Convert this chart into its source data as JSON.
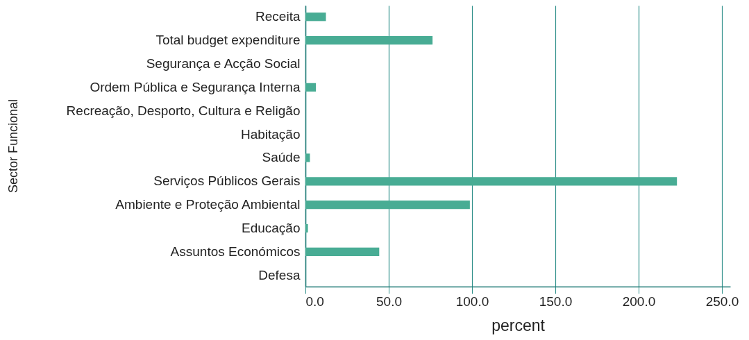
{
  "chart_data": {
    "type": "bar",
    "orientation": "horizontal",
    "xlabel": "percent",
    "ylabel": "Sector Funcional",
    "categories": [
      "Receita",
      "Total budget expenditure",
      "Segurança e Acção Social",
      "Ordem Pública e Segurança Interna",
      "Recreação, Desporto, Cultura e Religão",
      "Habitação",
      "Saúde",
      "Serviços Públicos Gerais",
      "Ambiente e Proteção Ambiental",
      "Educação",
      "Assuntos Económicos",
      "Defesa"
    ],
    "values": [
      12.3,
      76.3,
      0,
      6.3,
      0,
      0,
      2.7,
      223,
      98.7,
      1.5,
      44.3,
      0
    ],
    "color": "#48ac94",
    "xlim": [
      0,
      255
    ],
    "xticks": [
      {
        "value": 0,
        "label": "0.0"
      },
      {
        "value": 50,
        "label": "50.0"
      },
      {
        "value": 100,
        "label": "100.0"
      },
      {
        "value": 150,
        "label": "150.0"
      },
      {
        "value": 200,
        "label": "200.0"
      },
      {
        "value": 250,
        "label": "250.0"
      }
    ],
    "grid": "x"
  }
}
